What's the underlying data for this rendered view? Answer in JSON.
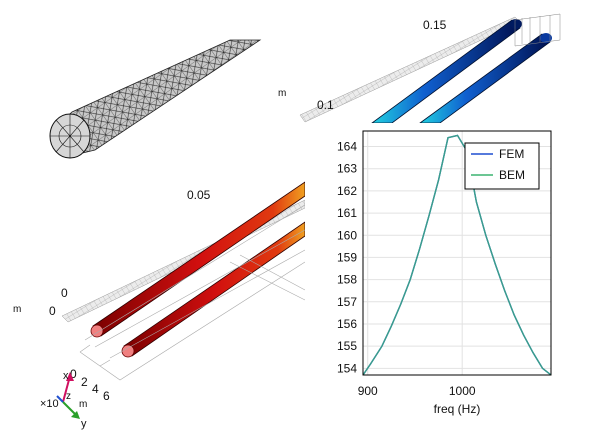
{
  "scene": {
    "axis_labels": {
      "scale_015": "0.15",
      "scale_01": "0.1",
      "scale_005": "0.05",
      "unit_m_top": "m",
      "unit_m_left": "m",
      "zero_a": "0",
      "zero_b": "0"
    },
    "depth_ticks": [
      "0",
      "2",
      "4",
      "6"
    ],
    "triad": {
      "x": "x",
      "y": "y",
      "z": "z",
      "multiplier": "×10",
      "unit": "m"
    }
  },
  "chart_data": {
    "type": "line",
    "xlabel": "freq (Hz)",
    "ylabel": "",
    "xlim": [
      895,
      1094
    ],
    "ylim": [
      153.7,
      164.7
    ],
    "x_ticks": [
      900,
      1000
    ],
    "y_ticks": [
      154,
      155,
      156,
      157,
      158,
      159,
      160,
      161,
      162,
      163,
      164
    ],
    "legend_position": "top-right",
    "series": [
      {
        "name": "FEM",
        "color": "#1f4fd1",
        "x": [
          895,
          903,
          915,
          925,
          935,
          945,
          955,
          965,
          975,
          985,
          995,
          1005,
          1015,
          1025,
          1035,
          1045,
          1055,
          1065,
          1075,
          1085,
          1094
        ],
        "y": [
          153.7,
          154.2,
          155.0,
          155.9,
          156.9,
          158.0,
          159.4,
          160.9,
          162.5,
          164.4,
          164.5,
          163.8,
          161.5,
          160.0,
          158.7,
          157.5,
          156.4,
          155.5,
          154.7,
          154.0,
          153.7
        ]
      },
      {
        "name": "BEM",
        "color": "#3cb371",
        "x": [
          895,
          903,
          915,
          925,
          935,
          945,
          955,
          965,
          975,
          985,
          995,
          1005,
          1015,
          1025,
          1035,
          1045,
          1055,
          1065,
          1075,
          1085,
          1094
        ],
        "y": [
          153.7,
          154.2,
          155.0,
          155.9,
          156.9,
          158.0,
          159.4,
          160.9,
          162.5,
          164.4,
          164.5,
          163.8,
          161.5,
          160.0,
          158.7,
          157.5,
          156.4,
          155.5,
          154.7,
          154.0,
          153.7
        ]
      }
    ],
    "plot_line_color": "#3a9f8a",
    "grid": true
  }
}
